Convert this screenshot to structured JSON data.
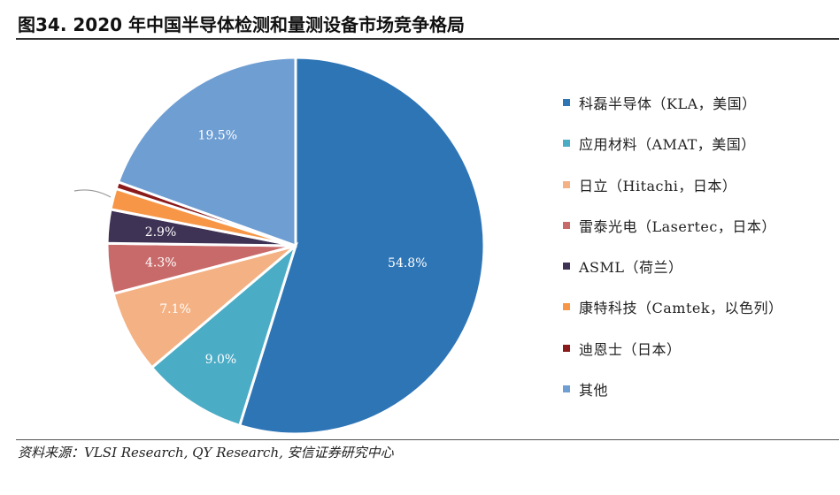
{
  "title": "图34. 2020 年中国半导体检测和量测设备市场竞争格局",
  "source": "资料来源：VLSI Research, QY Research, 安信证券研究中心",
  "chart_data": {
    "type": "pie",
    "categories": [
      "科磊半导体（KLA，美国）",
      "应用材料（AMAT，美国）",
      "日立（Hitachi，日本）",
      "雷泰光电（Lasertec，日本）",
      "ASML（荷兰）",
      "康特科技（Camtek，以色列）",
      "迪恩士（日本）",
      "其他"
    ],
    "values": [
      54.8,
      9.0,
      7.1,
      4.3,
      2.9,
      1.8,
      0.6,
      19.5
    ],
    "data_labels": [
      "54.8%",
      "9.0%",
      "7.1%",
      "4.3%",
      "2.9%",
      "",
      "",
      "19.5%"
    ],
    "colors": [
      "#2e75b6",
      "#4bacc6",
      "#f4b183",
      "#c96a6a",
      "#3f3355",
      "#f79646",
      "#8b1a1a",
      "#6f9ed3"
    ],
    "legend_position": "right",
    "start_angle": "top, clockwise"
  }
}
